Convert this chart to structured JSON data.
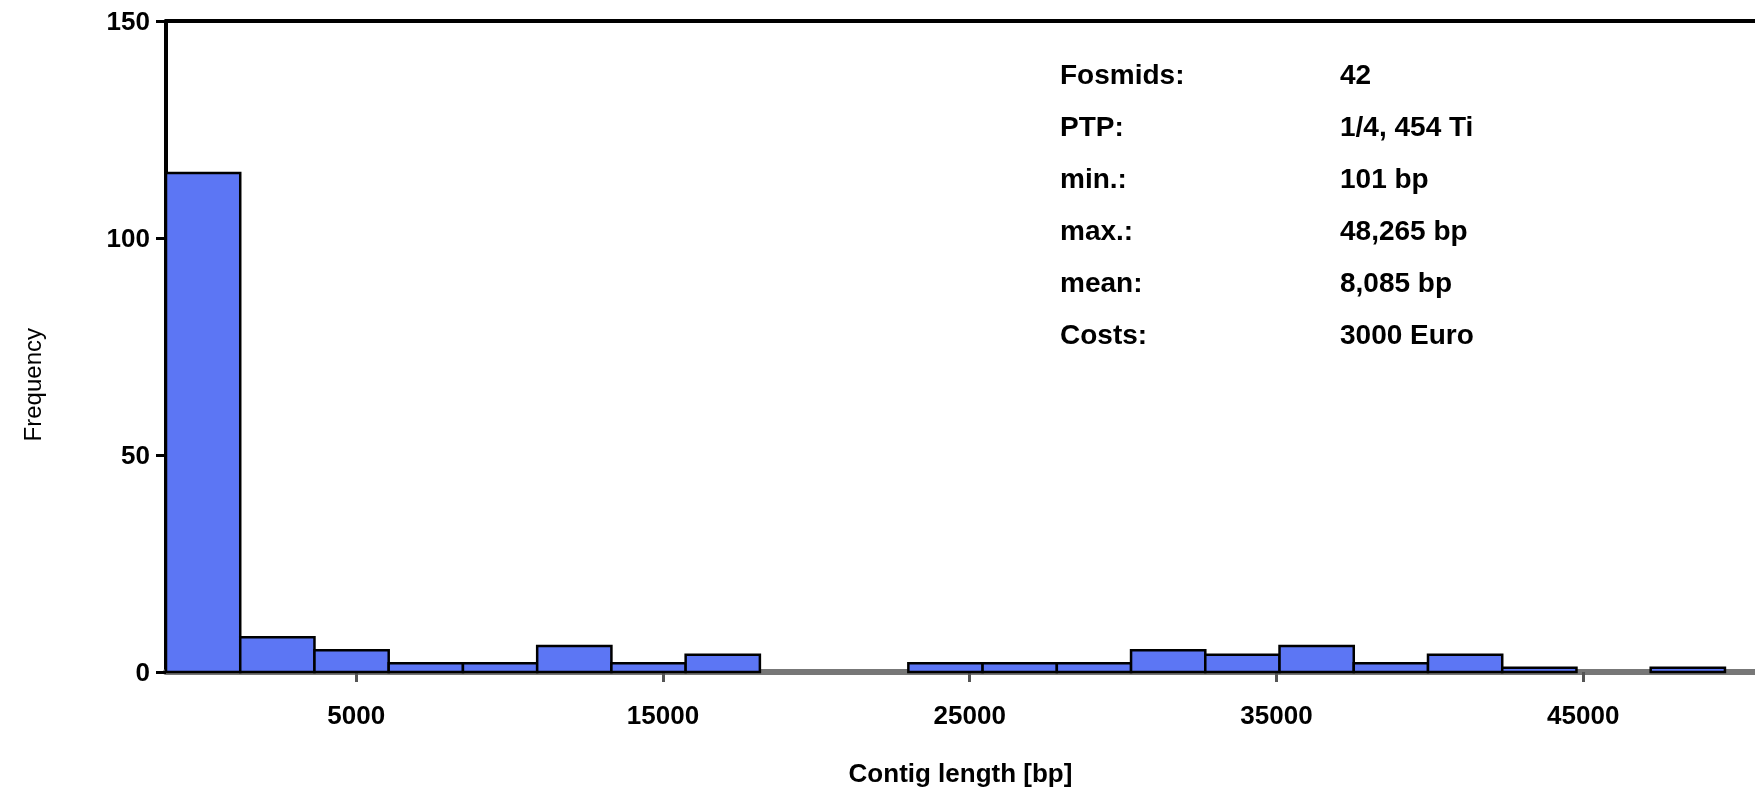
{
  "chart_data": {
    "type": "histogram",
    "xlabel": "Contig length [bp]",
    "ylabel": "Frequency",
    "bins": [
      -1200,
      1220,
      3640,
      6060,
      8480,
      10900,
      13320,
      15740,
      18160,
      20580,
      23000,
      25420,
      27840,
      30260,
      32680,
      35100,
      37520,
      39940,
      42360,
      44780,
      47200,
      49620
    ],
    "values": [
      115,
      8,
      5,
      2,
      2,
      6,
      2,
      4,
      0,
      0,
      2,
      2,
      2,
      5,
      4,
      6,
      2,
      4,
      1,
      0,
      1
    ],
    "color": "#5c76f4",
    "xlim": [
      -1200,
      50600
    ],
    "xticks": [
      5000,
      15000,
      25000,
      35000,
      45000
    ],
    "ylim": [
      0,
      150
    ],
    "yticks": [
      0,
      50,
      100,
      150
    ],
    "grid": false,
    "annotations": [
      "Fosmids:",
      "42",
      "PTP:",
      "1/4, 454 Ti",
      "min.:",
      "101 bp",
      "max.:",
      "48,265 bp",
      "mean:",
      "8,085 bp",
      "Costs:",
      "3000 Euro"
    ]
  }
}
